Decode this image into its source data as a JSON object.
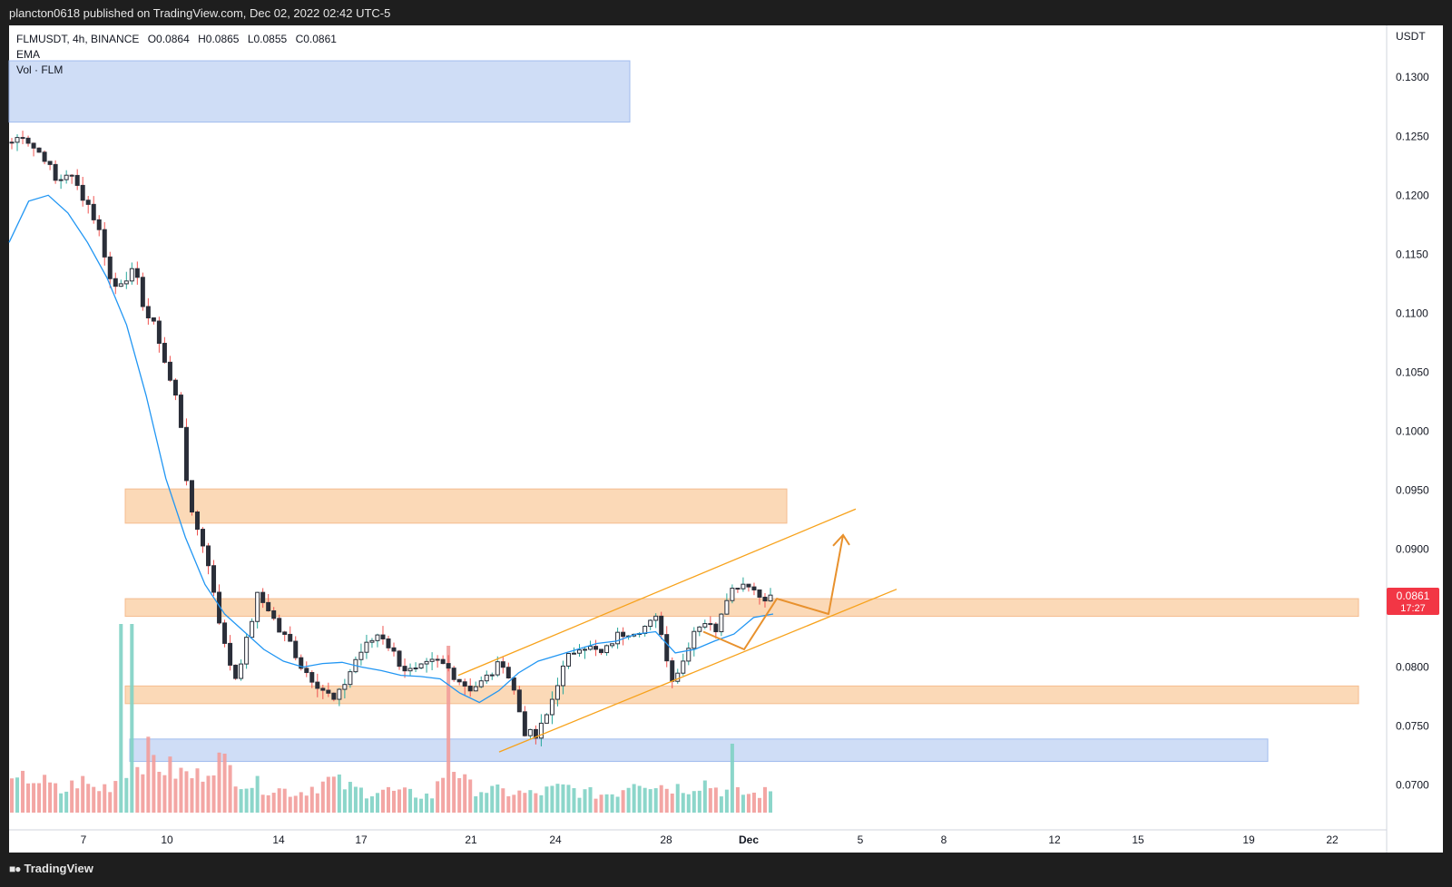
{
  "header": {
    "published": "plancton0618 published on TradingView.com, Dec 02, 2022 02:42 UTC-5"
  },
  "legend": {
    "symbol": "FLMUSDT, 4h, BINANCE",
    "open": "O0.0864",
    "high": "H0.0865",
    "low": "L0.0855",
    "close": "C0.0861",
    "ema_label": "EMA",
    "vol_label": "Vol · FLM"
  },
  "price_axis": {
    "currency": "USDT",
    "ticks": [
      "0.1300",
      "0.1250",
      "0.1200",
      "0.1150",
      "0.1100",
      "0.1050",
      "0.1000",
      "0.0950",
      "0.0900",
      "0.0850",
      "0.0800",
      "0.0750",
      "0.0700"
    ]
  },
  "last_price": {
    "value": "0.0861",
    "countdown": "17:27",
    "color": "#f23645"
  },
  "footer": {
    "brand": "TradingView"
  },
  "colors": {
    "up": "#26a69a",
    "down": "#ef5350",
    "candle_up": "#ffffff",
    "candle_down": "#2a2e39",
    "ema": "#2196f3",
    "zone_orange": "#fbd7b4",
    "zone_blue": "#cddcf6",
    "channel": "#f7a21b"
  },
  "chart_data": {
    "type": "candlestick",
    "symbol": "FLMUSDT",
    "interval": "4h",
    "exchange": "BINANCE",
    "ylim": [
      0.0662,
      0.1344
    ],
    "x_ticks": [
      "7",
      "10",
      "14",
      "17",
      "21",
      "24",
      "28",
      "Dec",
      "5",
      "8",
      "12",
      "15",
      "19",
      "22"
    ],
    "price_path": [
      0.1245,
      0.1252,
      0.124,
      0.1232,
      0.121,
      0.122,
      0.1205,
      0.119,
      0.1165,
      0.112,
      0.113,
      0.1135,
      0.11,
      0.1085,
      0.1048,
      0.102,
      0.093,
      0.091,
      0.087,
      0.082,
      0.079,
      0.082,
      0.086,
      0.085,
      0.083,
      0.082,
      0.08,
      0.079,
      0.078,
      0.077,
      0.079,
      0.081,
      0.082,
      0.083,
      0.0815,
      0.08,
      0.0795,
      0.08,
      0.0805,
      0.08,
      0.079,
      0.0782,
      0.0786,
      0.0795,
      0.0805,
      0.078,
      0.0745,
      0.074,
      0.076,
      0.079,
      0.081,
      0.082,
      0.0815,
      0.081,
      0.0825,
      0.083,
      0.0832,
      0.0835,
      0.0842,
      0.079,
      0.08,
      0.083,
      0.084,
      0.083,
      0.086,
      0.087,
      0.0872,
      0.086,
      0.0861
    ],
    "ema_path": [
      0.116,
      0.1195,
      0.12,
      0.1185,
      0.116,
      0.113,
      0.109,
      0.103,
      0.096,
      0.091,
      0.087,
      0.0845,
      0.083,
      0.0815,
      0.0805,
      0.08,
      0.0803,
      0.0804,
      0.08,
      0.0797,
      0.0793,
      0.0792,
      0.079,
      0.0778,
      0.077,
      0.078,
      0.0795,
      0.0805,
      0.081,
      0.0815,
      0.082,
      0.0822,
      0.0828,
      0.083,
      0.0812,
      0.0815,
      0.0822,
      0.0828,
      0.0842,
      0.0845
    ],
    "volume_profile": [
      0.4,
      0.55,
      0.45,
      0.3,
      0.5,
      0.35,
      0.45,
      0.8,
      0.9,
      0.7,
      0.6,
      0.55,
      0.85,
      0.65,
      0.45,
      0.4,
      0.35,
      0.3,
      0.42,
      0.5,
      0.38,
      0.32,
      0.35,
      0.3,
      0.28,
      0.25,
      0.85,
      0.4,
      0.35,
      0.32,
      0.3,
      0.28,
      0.35,
      0.38,
      0.3,
      0.28,
      0.32,
      0.55,
      0.45,
      0.4,
      0.38,
      0.48,
      0.35,
      0.3,
      0.28,
      0.32
    ],
    "zones": [
      {
        "kind": "supply",
        "color": "blue",
        "low": 0.1262,
        "high": 0.1314
      },
      {
        "kind": "resistance",
        "color": "orange",
        "low": 0.0922,
        "high": 0.0951
      },
      {
        "kind": "pivot",
        "color": "orange",
        "low": 0.0843,
        "high": 0.0858
      },
      {
        "kind": "support",
        "color": "orange",
        "low": 0.0769,
        "high": 0.0784
      },
      {
        "kind": "demand",
        "color": "blue",
        "low": 0.072,
        "high": 0.0739
      }
    ],
    "channel": {
      "upper": [
        0.0793,
        0.0934
      ],
      "lower": [
        0.0728,
        0.0866
      ]
    },
    "projection": [
      0.083,
      0.0815,
      0.0858,
      0.0845,
      0.0912
    ]
  }
}
